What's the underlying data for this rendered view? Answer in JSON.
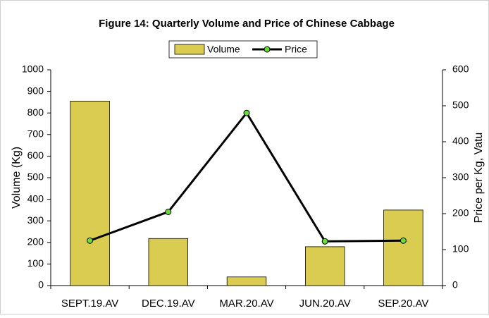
{
  "chart_data": {
    "type": "bar-line",
    "title": "Figure 14: Quarterly Volume and Price of Chinese Cabbage",
    "categories": [
      "SEPT.19.AV",
      "DEC.19.AV",
      "MAR.20.AV",
      "JUN.20.AV",
      "SEP.20.AV"
    ],
    "series": [
      {
        "name": "Volume",
        "type": "bar",
        "color": "#d9cc50",
        "values": [
          855,
          218,
          40,
          180,
          350
        ]
      },
      {
        "name": "Price",
        "type": "line",
        "axis": "y2",
        "color": "#000000",
        "marker_color": "#66dd33",
        "values": [
          125,
          205,
          480,
          123,
          125
        ]
      }
    ],
    "ylabel": "Volume (Kg)",
    "y2label": "Price per Kg, Vatu",
    "ylim": [
      0,
      1000
    ],
    "yticks": [
      0,
      100,
      200,
      300,
      400,
      500,
      600,
      700,
      800,
      900,
      1000
    ],
    "y2lim": [
      0,
      600
    ],
    "y2ticks": [
      0,
      100,
      200,
      300,
      400,
      500,
      600
    ],
    "legend": "top"
  }
}
